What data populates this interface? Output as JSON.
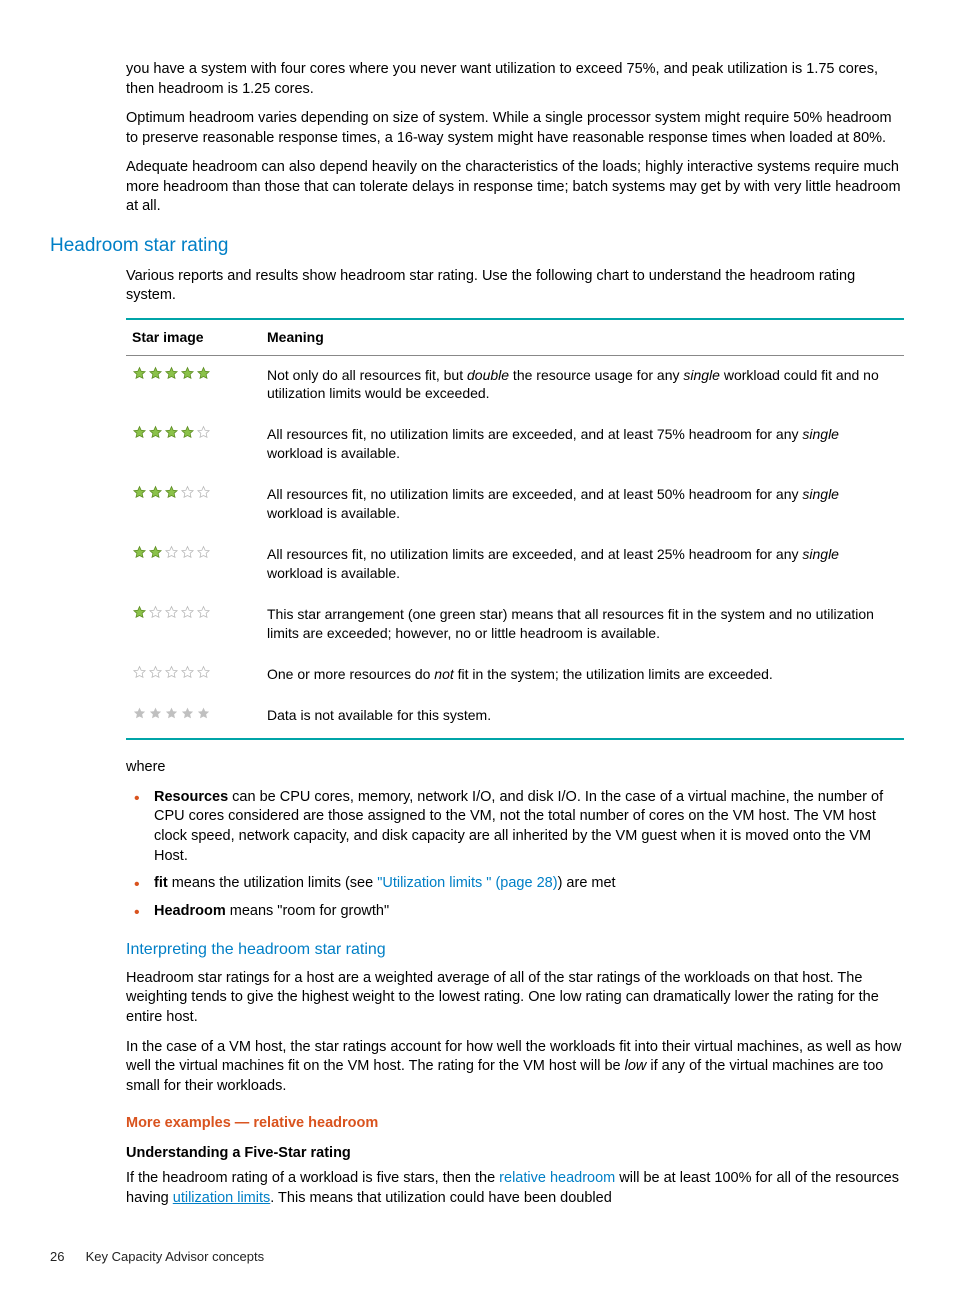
{
  "intro": {
    "p1": "you have a system with four cores where you never want utilization to exceed 75%, and peak utilization is 1.75 cores, then headroom is 1.25 cores.",
    "p2": "Optimum headroom varies depending on size of system. While a single processor system might require 50% headroom to preserve reasonable response times, a 16-way system might have reasonable response times when loaded at 80%.",
    "p3": "Adequate headroom can also depend heavily on the characteristics of the loads; highly interactive systems require much more headroom than those that can tolerate delays in response time; batch systems may get by with very little headroom at all."
  },
  "section_heading": "Headroom star rating",
  "section_intro": "Various reports and results show headroom star rating. Use the following chart to understand the headroom rating system.",
  "table": {
    "col1": "Star image",
    "col2": "Meaning",
    "rows": [
      {
        "green": 5,
        "grey": 0,
        "mode": "outline",
        "text_pre": "Not only do all resources fit, but ",
        "em1": "double",
        "text_mid": " the resource usage for any ",
        "em2": "single",
        "text_post": " workload could fit and no utilization limits would be exceeded."
      },
      {
        "green": 4,
        "grey": 1,
        "mode": "outline",
        "text_pre": "All resources fit, no utilization limits are exceeded, and at least 75% headroom for any ",
        "em1": "single",
        "text_post": " workload is available."
      },
      {
        "green": 3,
        "grey": 2,
        "mode": "outline",
        "text_pre": "All resources fit, no utilization limits are exceeded, and at least 50% headroom for any ",
        "em1": "single",
        "text_post": " workload is available."
      },
      {
        "green": 2,
        "grey": 3,
        "mode": "outline",
        "text_pre": "All resources fit, no utilization limits are exceeded, and at least 25% headroom for any ",
        "em1": "single",
        "text_post": " workload is available."
      },
      {
        "green": 1,
        "grey": 4,
        "mode": "outline",
        "text_pre": "This star arrangement (one green star) means that all resources fit in the system and no utilization limits are exceeded; however, no or little headroom is available."
      },
      {
        "green": 0,
        "grey": 5,
        "mode": "outline",
        "text_pre": "One or more resources do ",
        "em1": "not",
        "text_post": " fit in the system; the utilization limits are exceeded."
      },
      {
        "green": 0,
        "grey": 5,
        "mode": "flat",
        "text_pre": "Data is not available for this system."
      }
    ]
  },
  "where_label": "where",
  "bullets": {
    "b1_strong": "Resources",
    "b1_rest": " can be CPU cores, memory, network I/O, and disk I/O. In the case of a virtual machine, the number of CPU cores considered are those assigned to the VM, not the total number of cores on the VM host. The VM host clock speed, network capacity, and disk capacity are all inherited by the VM guest when it is moved onto the VM Host.",
    "b2_strong": "fit",
    "b2_mid": " means the utilization limits (see ",
    "b2_link": "\"Utilization limits \" (page 28)",
    "b2_end": ") are met",
    "b3_strong": "Headroom",
    "b3_rest": " means \"room for growth\""
  },
  "sub_heading": "Interpreting the headroom star rating",
  "interp": {
    "p1": "Headroom star ratings for a host are a weighted average of all of the star ratings of the workloads on that host. The weighting tends to give the highest weight to the lowest rating. One low rating can dramatically lower the rating for the entire host.",
    "p2_pre": "In the case of a VM host, the star ratings account for how well the workloads fit into their virtual machines, as well as how well the virtual machines fit on the VM host. The rating for the VM host will be ",
    "p2_em": "low",
    "p2_post": " if any of the virtual machines are too small for their workloads."
  },
  "orange_heading": "More examples — relative headroom",
  "bold_heading": "Understanding a Five-Star rating",
  "five_star": {
    "pre": "If the headroom rating of a workload is five stars, then the ",
    "link1": "relative headroom",
    "mid": " will be at least 100% for all of the resources having ",
    "link2": "utilization limits",
    "post": ". This means that utilization could have been doubled"
  },
  "footer": {
    "page": "26",
    "title": "Key Capacity Advisor concepts"
  },
  "colors": {
    "green_fill": "#8bc24a",
    "green_stroke": "#5a8a1f",
    "grey_fill": "#ffffff",
    "grey_stroke": "#b8b8b8",
    "flat_grey": "#c0c0c0"
  }
}
